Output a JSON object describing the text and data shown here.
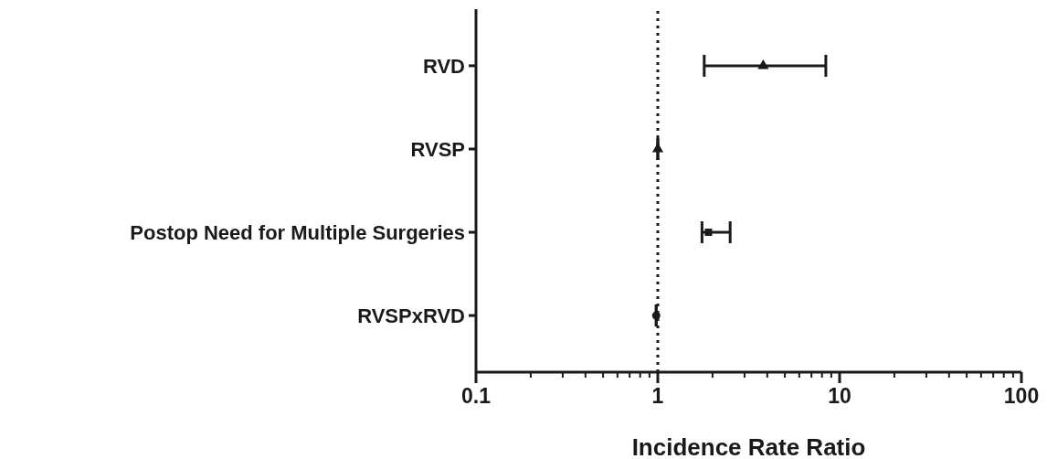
{
  "chart_data": {
    "type": "scatter",
    "orientation": "horizontal",
    "xlabel": "Incidence Rate Ratio",
    "categories": [
      "RVD",
      "RVSP",
      "Postop Need for Multiple Surgeries",
      "RVSPxRVD"
    ],
    "series": [
      {
        "color": "#1a1a1a",
        "marker": "triangle",
        "values": [
          3.8,
          null,
          null,
          null
        ],
        "errors": [
          [
            1.8,
            8.4
          ],
          null,
          null,
          null
        ]
      },
      {
        "color": "#1a1a1a",
        "marker": "triangle",
        "values": [
          null,
          1.0,
          null,
          null
        ],
        "errors": [
          null,
          null,
          null,
          null
        ]
      },
      {
        "color": "#1a1a1a",
        "marker": "square",
        "values": [
          null,
          null,
          1.9,
          null
        ],
        "errors": [
          null,
          null,
          [
            1.75,
            2.5
          ],
          null
        ]
      },
      {
        "color": "#1a1a1a",
        "marker": "circle",
        "values": [
          null,
          null,
          null,
          0.98
        ],
        "errors": [
          null,
          null,
          null,
          null
        ]
      }
    ],
    "log": "x",
    "xlim": [
      0.1,
      100
    ],
    "xticks": [
      0.1,
      {
        "value": 0.2,
        "label": null
      },
      {
        "value": 0.3,
        "label": null
      },
      {
        "value": 0.4,
        "label": null
      },
      {
        "value": 0.5,
        "label": null
      },
      {
        "value": 0.6,
        "label": null
      },
      {
        "value": 0.7,
        "label": null
      },
      {
        "value": 0.8,
        "label": null
      },
      {
        "value": 0.9,
        "label": null
      },
      1,
      {
        "value": 2,
        "label": null
      },
      {
        "value": 3,
        "label": null
      },
      {
        "value": 4,
        "label": null
      },
      {
        "value": 5,
        "label": null
      },
      {
        "value": 6,
        "label": null
      },
      {
        "value": 7,
        "label": null
      },
      {
        "value": 8,
        "label": null
      },
      {
        "value": 9,
        "label": null
      },
      10,
      {
        "value": 20,
        "label": null
      },
      {
        "value": 30,
        "label": null
      },
      {
        "value": 40,
        "label": null
      },
      {
        "value": 50,
        "label": null
      },
      {
        "value": 60,
        "label": null
      },
      {
        "value": 70,
        "label": null
      },
      {
        "value": 80,
        "label": null
      },
      {
        "value": 90,
        "label": null
      },
      100
    ],
    "ref_lines": [
      {
        "axis": "x",
        "value": 1,
        "line_style": "dotted",
        "color": "#1a1a1a"
      }
    ],
    "grid": false,
    "legend": false
  }
}
